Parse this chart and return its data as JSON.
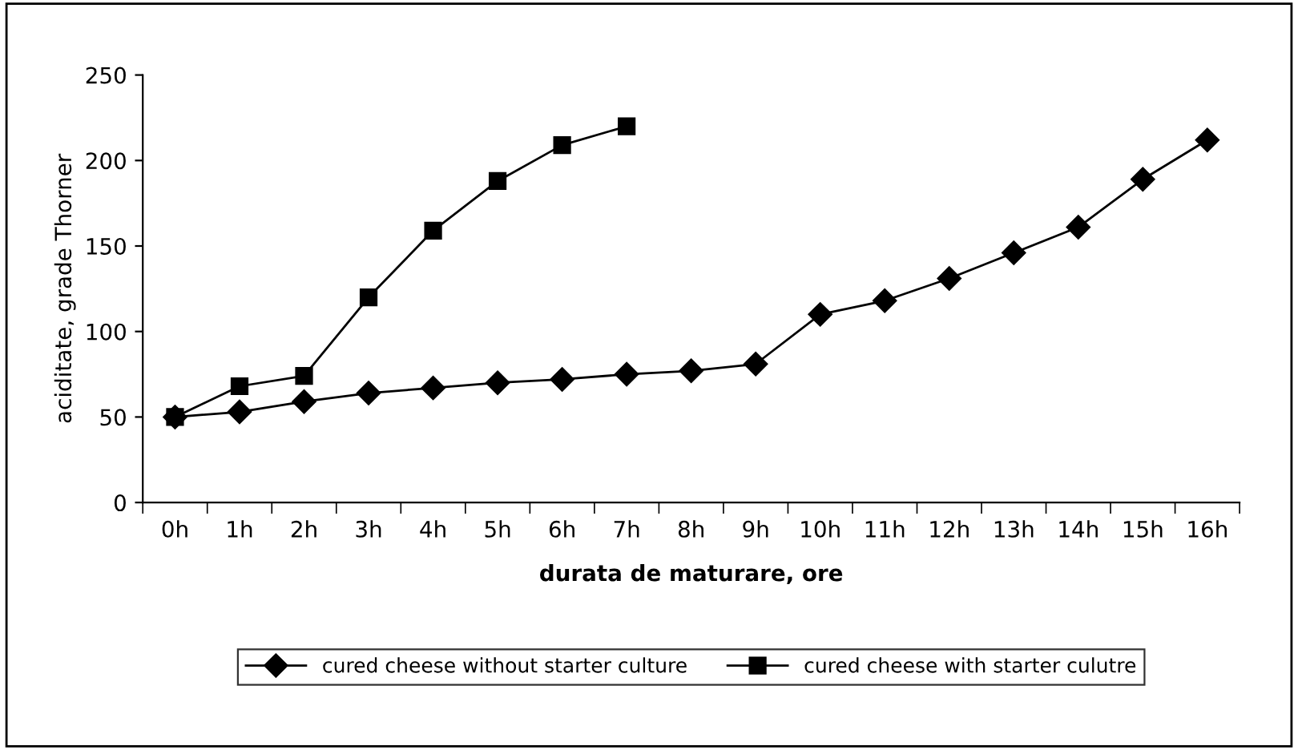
{
  "chart_data": {
    "type": "line",
    "xlabel": "durata de maturare, ore",
    "ylabel": "aciditate, grade Thorner",
    "categories": [
      "0h",
      "1h",
      "2h",
      "3h",
      "4h",
      "5h",
      "6h",
      "7h",
      "8h",
      "9h",
      "10h",
      "11h",
      "12h",
      "13h",
      "14h",
      "15h",
      "16h"
    ],
    "series": [
      {
        "name": "cured cheese without starter culture",
        "color": "#000000",
        "marker": "diamond",
        "values": [
          50,
          53,
          59,
          64,
          67,
          70,
          72,
          75,
          77,
          81,
          110,
          118,
          131,
          146,
          161,
          189,
          212
        ]
      },
      {
        "name": "cured cheese with starter culutre",
        "color": "#000000",
        "marker": "square",
        "values": [
          50,
          68,
          74,
          120,
          159,
          188,
          209,
          220,
          null,
          null,
          null,
          null,
          null,
          null,
          null,
          null,
          null
        ]
      }
    ],
    "ylim": [
      0,
      250
    ],
    "yticks": [
      0,
      50,
      100,
      150,
      200,
      250
    ],
    "grid": false,
    "legend": "bottom",
    "line_style": "solid"
  }
}
